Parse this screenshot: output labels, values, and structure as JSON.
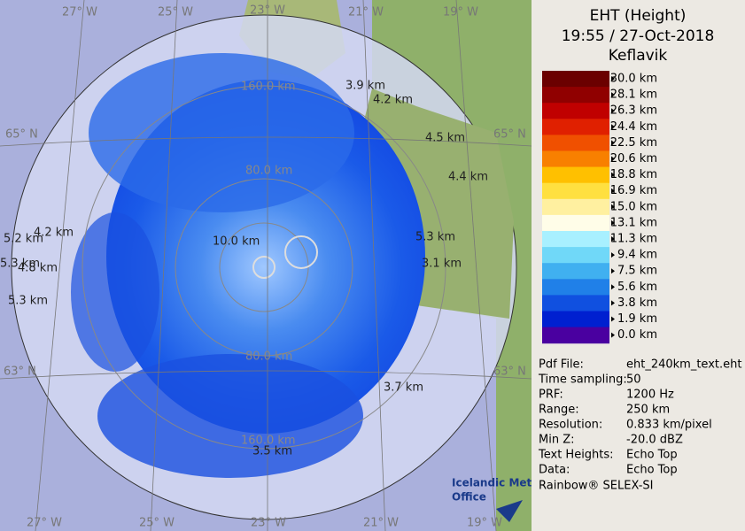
{
  "header": {
    "title": "EHT (Height)",
    "time": "19:55 / 27-Oct-2018",
    "site": "Keflavik"
  },
  "legend": [
    {
      "label": "30.0 km",
      "color": "#6b0000"
    },
    {
      "label": "28.1 km",
      "color": "#900000"
    },
    {
      "label": "26.3 km",
      "color": "#c00000"
    },
    {
      "label": "24.4 km",
      "color": "#e02000"
    },
    {
      "label": "22.5 km",
      "color": "#f05000"
    },
    {
      "label": "20.6 km",
      "color": "#f88000"
    },
    {
      "label": "18.8 km",
      "color": "#ffc000"
    },
    {
      "label": "16.9 km",
      "color": "#ffe040"
    },
    {
      "label": "15.0 km",
      "color": "#fff0a0"
    },
    {
      "label": "13.1 km",
      "color": "#fffde8"
    },
    {
      "label": "11.3 km",
      "color": "#a8f0ff"
    },
    {
      "label": "9.4 km",
      "color": "#70d8f8"
    },
    {
      "label": "7.5 km",
      "color": "#40b0f0"
    },
    {
      "label": "5.6 km",
      "color": "#2080e8"
    },
    {
      "label": "3.8 km",
      "color": "#1050e0"
    },
    {
      "label": "1.9 km",
      "color": "#0020d0"
    },
    {
      "label": "0.0 km",
      "color": "#4a00a0"
    }
  ],
  "info": [
    [
      "Pdf File:",
      "eht_240km_text.eht"
    ],
    [
      "Time sampling:",
      "50"
    ],
    [
      "PRF:",
      "1200 Hz"
    ],
    [
      "Range:",
      "250 km"
    ],
    [
      "Resolution:",
      "0.833 km/pixel"
    ],
    [
      "Min Z:",
      "-20.0 dBZ"
    ],
    [
      "Text Heights:",
      "Echo Top"
    ],
    [
      "Data:",
      "Echo Top"
    ]
  ],
  "footer": "Rainbow® SELEX-SI",
  "logo": [
    "Icelandic Met",
    "Office"
  ],
  "map": {
    "lon_top": [
      "27° W",
      "25° W",
      "23° W",
      "21° W",
      "19° W"
    ],
    "lon_bottom": [
      "27° W",
      "25° W",
      "23° W",
      "21° W",
      "19° W"
    ],
    "lat": [
      "65° N",
      "65° N",
      "63° N",
      "63° N"
    ],
    "rings": [
      "160.0 km",
      "80.0 km",
      "80.0 km",
      "160.0 km"
    ],
    "echo_tops": [
      "3.9 km",
      "4.2 km",
      "4.5 km",
      "4.4 km",
      "10.0 km",
      "5.3 km",
      "3.1 km",
      "4.2 km",
      "5.2 km",
      "5.3 km",
      "4.8 km",
      "5.3 km",
      "3.7 km",
      "3.5 km"
    ]
  }
}
